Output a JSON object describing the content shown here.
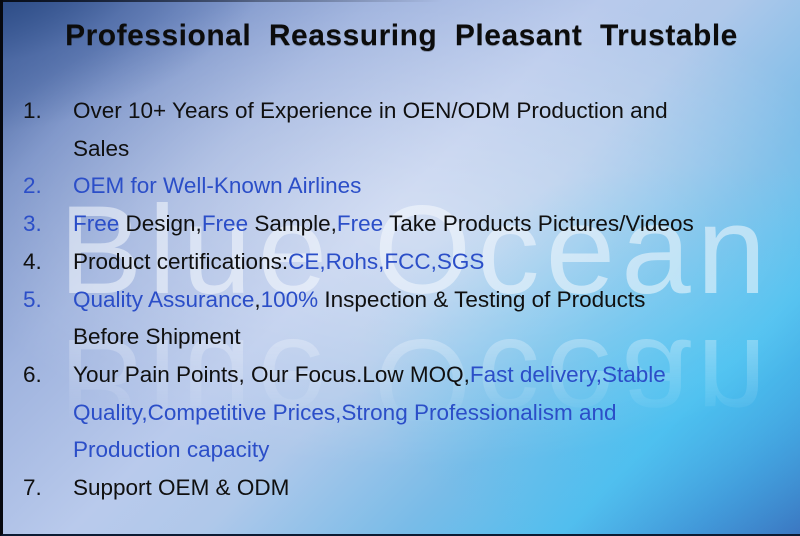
{
  "title": "Professional  Reassuring  Pleasant  Trustable",
  "watermark": {
    "text": "Blue Ocean"
  },
  "colors": {
    "text_black": "#101010",
    "text_blue": "#2b4ec8"
  },
  "list": [
    {
      "number": "1.",
      "number_color": "black",
      "segments": [
        {
          "text": "Over 10+ Years of Experience in OEN/ODM Production and\nSales",
          "color": "black"
        }
      ]
    },
    {
      "number": "2.",
      "number_color": "blue",
      "segments": [
        {
          "text": "OEM for Well-Known Airlines",
          "color": "blue"
        }
      ]
    },
    {
      "number": "3.",
      "number_color": "blue",
      "segments": [
        {
          "text": "Free ",
          "color": "blue"
        },
        {
          "text": "Design,",
          "color": "black"
        },
        {
          "text": "Free ",
          "color": "blue"
        },
        {
          "text": "Sample,",
          "color": "black"
        },
        {
          "text": "Free ",
          "color": "blue"
        },
        {
          "text": "Take Products Pictures/Videos",
          "color": "black"
        }
      ]
    },
    {
      "number": "4.",
      "number_color": "black",
      "segments": [
        {
          "text": "Product certifications:",
          "color": "black"
        },
        {
          "text": "CE,Rohs,FCC,SGS",
          "color": "blue"
        }
      ]
    },
    {
      "number": "5.",
      "number_color": "blue",
      "segments": [
        {
          "text": "Quality Assurance",
          "color": "blue"
        },
        {
          "text": ",",
          "color": "black"
        },
        {
          "text": "100%",
          "color": "blue"
        },
        {
          "text": " Inspection & Testing of Products\nBefore Shipment",
          "color": "black"
        }
      ]
    },
    {
      "number": "6.",
      "number_color": "black",
      "segments": [
        {
          "text": "Your Pain Points, Our Focus.Low MOQ,",
          "color": "black"
        },
        {
          "text": "Fast delivery,Stable\nQuality,Competitive Prices,Strong Professionalism and\nProduction capacity",
          "color": "blue"
        }
      ]
    },
    {
      "number": "7.",
      "number_color": "black",
      "segments": [
        {
          "text": "Support OEM & ODM",
          "color": "black"
        }
      ]
    }
  ]
}
